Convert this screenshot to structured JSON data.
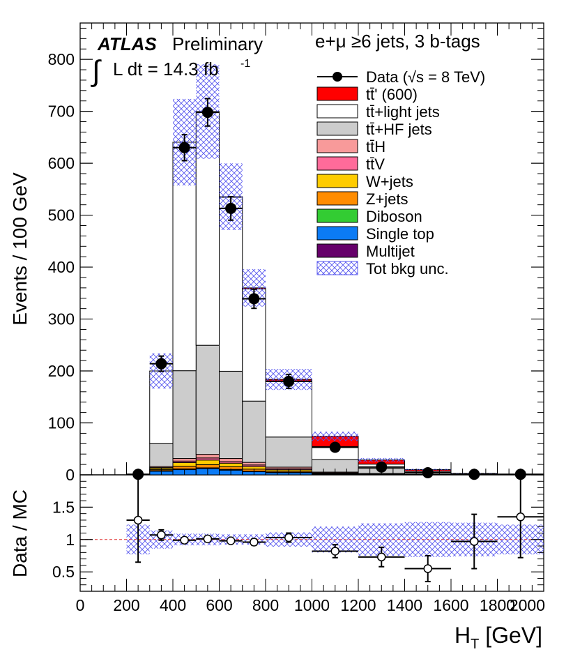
{
  "chart_data": [
    {
      "type": "bar",
      "subtype": "stacked-histogram",
      "title": "",
      "atlas_label": "ATLAS",
      "atlas_suffix": "Preliminary",
      "lumi_integral": "∫",
      "lumi_label": "L dt = 14.3 fb",
      "lumi_exp": "-1",
      "channel_label": "e+μ  ≥6 jets,  3 b-tags",
      "ylabel": "Events / 100 GeV",
      "xlabel": "",
      "xlim": [
        0,
        2000
      ],
      "ylim": [
        0,
        870
      ],
      "yticks": [
        0,
        100,
        200,
        300,
        400,
        500,
        600,
        700,
        800
      ],
      "bin_edges": [
        0,
        100,
        200,
        300,
        400,
        500,
        600,
        700,
        800,
        1000,
        1200,
        1400,
        1600,
        1800,
        2000
      ],
      "series": [
        {
          "name": "Single top",
          "legend": "Single top",
          "color": "#0b7bf5",
          "values": [
            0,
            0,
            0,
            7,
            10,
            12,
            9,
            6,
            4,
            1,
            0.5,
            0.2,
            0.1,
            0.05
          ]
        },
        {
          "name": "Multijet",
          "legend": "Multijet",
          "color": "#66006a",
          "values": [
            0,
            0,
            0,
            0.5,
            1,
            1,
            1,
            0.5,
            0.5,
            0.2,
            0,
            0,
            0,
            0
          ]
        },
        {
          "name": "Diboson",
          "legend": "Diboson",
          "color": "#33cc33",
          "values": [
            0,
            0,
            0,
            0.5,
            0.5,
            0.5,
            0.5,
            0.5,
            0.3,
            0.1,
            0,
            0,
            0,
            0
          ]
        },
        {
          "name": "Z+jets",
          "legend": "Z+jets",
          "color": "#ff8c00",
          "values": [
            0,
            0,
            0,
            2,
            5,
            6,
            5,
            4,
            2,
            0.5,
            0.3,
            0.1,
            0,
            0
          ]
        },
        {
          "name": "W+jets",
          "legend": "W+jets",
          "color": "#ffcc00",
          "values": [
            0,
            0,
            0,
            3,
            7,
            9,
            7,
            5,
            3,
            1,
            0.5,
            0.2,
            0,
            0
          ]
        },
        {
          "name": "ttV",
          "legend": "tt̄V",
          "color": "#ff6b9a",
          "values": [
            0,
            0,
            0,
            1,
            3,
            4,
            3,
            3,
            2,
            1,
            0.5,
            0.3,
            0.1,
            0.05
          ]
        },
        {
          "name": "ttH",
          "legend": "tt̄H",
          "color": "#f89a9a",
          "values": [
            0,
            0,
            0,
            2,
            5,
            7,
            6,
            5,
            3,
            1.5,
            0.8,
            0.3,
            0.1,
            0.05
          ]
        },
        {
          "name": "tt+HF jets",
          "legend": "tt̄+HF jets",
          "color": "#cccccc",
          "values": [
            0,
            0,
            0,
            44,
            169,
            210,
            168,
            118,
            58,
            24,
            10,
            4,
            1.5,
            0.5
          ]
        },
        {
          "name": "tt+light jets",
          "legend": "tt̄+light jets",
          "color": "#ffffff",
          "values": [
            0,
            0,
            0,
            140,
            440,
            450,
            335,
            216,
            107,
            25,
            8,
            2,
            0.5,
            0.3
          ]
        },
        {
          "name": "tt'(600)",
          "legend": "tt̄' (600)",
          "color": "#ff0000",
          "values": [
            0,
            0,
            0,
            0,
            0,
            0,
            1,
            2,
            4,
            20,
            8,
            3,
            0.5,
            0.2
          ]
        }
      ],
      "uncertainty": {
        "legend": "Tot bkg unc.",
        "color": "#6666ee",
        "rel": [
          0,
          0,
          0.21,
          0.17,
          0.13,
          0.13,
          0.12,
          0.1,
          0.11,
          0.12,
          0.13,
          0.14,
          0.15,
          0.16
        ]
      },
      "data": {
        "legend": "Data (√s = 8 TeV)",
        "x": [
          250,
          350,
          450,
          550,
          650,
          750,
          900,
          1100,
          1300,
          1500,
          1700,
          1900
        ],
        "y": [
          1,
          214,
          630,
          698,
          513,
          339,
          180,
          53,
          15,
          4,
          1,
          1
        ],
        "xerr": [
          50,
          50,
          50,
          50,
          50,
          50,
          100,
          100,
          100,
          100,
          100,
          100
        ]
      }
    },
    {
      "type": "scatter",
      "subtype": "ratio",
      "ylabel": "Data / MC",
      "xlabel": "H_T [GeV]",
      "xlabel_main": "H",
      "xlabel_sub": "T",
      "xlabel_unit": " [GeV]",
      "xlim": [
        0,
        2000
      ],
      "ylim": [
        0.2,
        2.0
      ],
      "yticks": [
        0.5,
        1,
        1.5
      ],
      "ytick_labels": [
        "0.5",
        "1",
        "1.5"
      ],
      "xticks": [
        0,
        200,
        400,
        600,
        800,
        1000,
        1200,
        1400,
        1600,
        1800,
        2000
      ],
      "reference_line": 1,
      "uncertainty_band": {
        "edges": [
          200,
          300,
          400,
          500,
          600,
          700,
          800,
          1000,
          1200,
          1400,
          1600,
          1800,
          2000
        ],
        "lo": [
          0.77,
          0.86,
          0.91,
          0.91,
          0.92,
          0.92,
          0.89,
          0.8,
          0.75,
          0.73,
          0.74,
          0.77
        ],
        "hi": [
          1.23,
          1.14,
          1.09,
          1.09,
          1.08,
          1.08,
          1.11,
          1.2,
          1.25,
          1.27,
          1.26,
          1.23
        ]
      },
      "x": [
        250,
        350,
        450,
        550,
        650,
        750,
        900,
        1100,
        1300,
        1500,
        1700,
        1900
      ],
      "y": [
        1.3,
        1.07,
        0.99,
        1.01,
        0.98,
        0.96,
        1.03,
        0.82,
        0.73,
        0.55,
        0.97,
        1.35
      ],
      "xerr": [
        50,
        50,
        50,
        50,
        50,
        50,
        100,
        100,
        100,
        100,
        100,
        100
      ],
      "yerr_lo": [
        0.65,
        0.08,
        0.04,
        0.04,
        0.04,
        0.05,
        0.07,
        0.1,
        0.15,
        0.2,
        0.42,
        0.63
      ],
      "yerr_hi": [
        0.65,
        0.08,
        0.04,
        0.04,
        0.04,
        0.05,
        0.07,
        0.1,
        0.15,
        0.2,
        0.42,
        0.63
      ]
    }
  ]
}
